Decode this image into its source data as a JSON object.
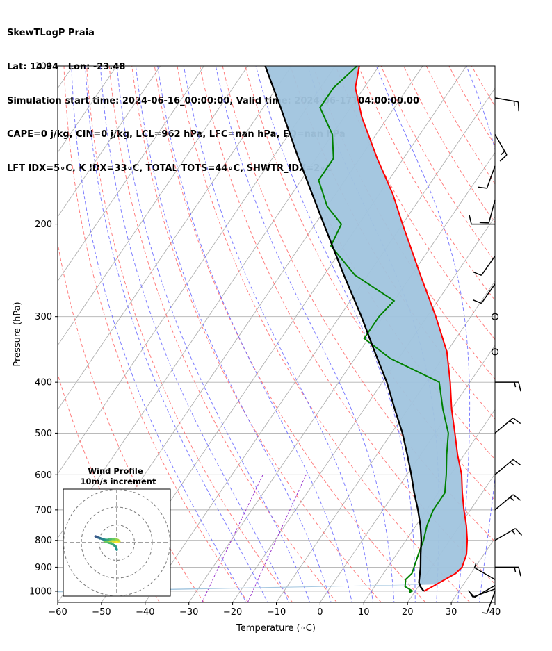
{
  "header": {
    "line1": "SkewTLogP Praia",
    "line2": "Lat: 14.94   Lon: -23.48",
    "line3": "Simulation start time: 2024-06-16_00:00:00, Valid time: 2024-06-17T04:00:00.00",
    "line4": "CAPE=0 j/kg, CIN=0 j/kg, LCL=962 hPa, LFC=nan hPa, EQ=nan hPa",
    "line5": "LFT IDX=5∘C, K IDX=33∘C, TOTAL TOTS=44∘C, SHWTR_IDX=2∘C"
  },
  "chart_data": {
    "type": "skewt",
    "xlabel": "Temperature (∘C)",
    "ylabel": "Pressure (hPa)",
    "xlim": [
      -60,
      40
    ],
    "ylim": [
      1050,
      100
    ],
    "x_ticks": [
      -60,
      -50,
      -40,
      -30,
      -20,
      -10,
      0,
      10,
      20,
      30,
      40
    ],
    "x_tick_labels": [
      "−60",
      "−50",
      "−40",
      "−30",
      "−20",
      "−10",
      "0",
      "10",
      "20",
      "30",
      "40"
    ],
    "y_ticks": [
      100,
      200,
      300,
      400,
      500,
      600,
      700,
      800,
      900,
      1000
    ],
    "y_tick_labels": [
      "100",
      "200",
      "300",
      "400",
      "500",
      "600",
      "700",
      "800",
      "900",
      "1000"
    ],
    "grid": true,
    "colors": {
      "temperature": "#ff0000",
      "dewpoint": "#008000",
      "parcel": "#000000",
      "cape_fill": "#a0c4de",
      "dry_adiabat": "#ff6666",
      "moist_adiabat": "#6666ff",
      "mixing_ratio": "#9933cc",
      "isotherm": "#b0b0b0"
    },
    "temperature_profile": [
      {
        "p": 1000,
        "t": 22.0
      },
      {
        "p": 975,
        "t": 23.5
      },
      {
        "p": 950,
        "t": 25.0
      },
      {
        "p": 925,
        "t": 26.5
      },
      {
        "p": 900,
        "t": 27.0
      },
      {
        "p": 850,
        "t": 26.0
      },
      {
        "p": 800,
        "t": 24.0
      },
      {
        "p": 750,
        "t": 21.5
      },
      {
        "p": 700,
        "t": 18.5
      },
      {
        "p": 650,
        "t": 15.5
      },
      {
        "p": 600,
        "t": 12.5
      },
      {
        "p": 550,
        "t": 8.5
      },
      {
        "p": 500,
        "t": 4.5
      },
      {
        "p": 450,
        "t": 0.0
      },
      {
        "p": 400,
        "t": -4.5
      },
      {
        "p": 350,
        "t": -10.0
      },
      {
        "p": 300,
        "t": -18.0
      },
      {
        "p": 250,
        "t": -28.0
      },
      {
        "p": 200,
        "t": -40.0
      },
      {
        "p": 175,
        "t": -47.0
      },
      {
        "p": 150,
        "t": -56.0
      },
      {
        "p": 125,
        "t": -66.0
      },
      {
        "p": 110,
        "t": -72.0
      },
      {
        "p": 100,
        "t": -74.5
      }
    ],
    "dewpoint_profile": [
      {
        "p": 1000,
        "t": 19.5
      },
      {
        "p": 980,
        "t": 17.0
      },
      {
        "p": 950,
        "t": 16.0
      },
      {
        "p": 925,
        "t": 16.5
      },
      {
        "p": 900,
        "t": 16.0
      },
      {
        "p": 850,
        "t": 15.0
      },
      {
        "p": 800,
        "t": 14.0
      },
      {
        "p": 750,
        "t": 12.5
      },
      {
        "p": 700,
        "t": 11.5
      },
      {
        "p": 650,
        "t": 11.5
      },
      {
        "p": 600,
        "t": 9.0
      },
      {
        "p": 550,
        "t": 6.0
      },
      {
        "p": 500,
        "t": 3.0
      },
      {
        "p": 450,
        "t": -2.0
      },
      {
        "p": 400,
        "t": -7.0
      },
      {
        "p": 360,
        "t": -22.0
      },
      {
        "p": 330,
        "t": -31.0
      },
      {
        "p": 300,
        "t": -31.0
      },
      {
        "p": 280,
        "t": -30.0
      },
      {
        "p": 250,
        "t": -43.0
      },
      {
        "p": 220,
        "t": -53.0
      },
      {
        "p": 200,
        "t": -54.0
      },
      {
        "p": 185,
        "t": -60.0
      },
      {
        "p": 165,
        "t": -66.0
      },
      {
        "p": 150,
        "t": -66.0
      },
      {
        "p": 135,
        "t": -70.0
      },
      {
        "p": 120,
        "t": -77.0
      },
      {
        "p": 110,
        "t": -77.0
      },
      {
        "p": 100,
        "t": -75.0
      }
    ],
    "parcel_profile": [
      {
        "p": 1000,
        "t": 22.0
      },
      {
        "p": 980,
        "t": 20.5
      },
      {
        "p": 962,
        "t": 19.5
      },
      {
        "p": 900,
        "t": 17.5
      },
      {
        "p": 850,
        "t": 15.5
      },
      {
        "p": 800,
        "t": 13.5
      },
      {
        "p": 750,
        "t": 11.0
      },
      {
        "p": 700,
        "t": 8.0
      },
      {
        "p": 650,
        "t": 4.5
      },
      {
        "p": 600,
        "t": 1.0
      },
      {
        "p": 550,
        "t": -3.0
      },
      {
        "p": 500,
        "t": -7.5
      },
      {
        "p": 450,
        "t": -13.0
      },
      {
        "p": 400,
        "t": -19.0
      },
      {
        "p": 350,
        "t": -26.5
      },
      {
        "p": 300,
        "t": -35.0
      },
      {
        "p": 250,
        "t": -45.5
      },
      {
        "p": 200,
        "t": -58.0
      },
      {
        "p": 150,
        "t": -74.0
      },
      {
        "p": 120,
        "t": -86.0
      },
      {
        "p": 100,
        "t": -96.0
      }
    ],
    "wind_barbs": [
      {
        "p": 1000,
        "speed": 5,
        "dir": 200
      },
      {
        "p": 990,
        "speed": 5,
        "dir": 250
      },
      {
        "p": 975,
        "speed": 10,
        "dir": 240
      },
      {
        "p": 950,
        "speed": 5,
        "dir": 300
      },
      {
        "p": 900,
        "speed": 15,
        "dir": 90
      },
      {
        "p": 800,
        "speed": 15,
        "dir": 60
      },
      {
        "p": 700,
        "speed": 15,
        "dir": 50
      },
      {
        "p": 600,
        "speed": 15,
        "dir": 50
      },
      {
        "p": 500,
        "speed": 15,
        "dir": 50
      },
      {
        "p": 400,
        "speed": 15,
        "dir": 90
      },
      {
        "p": 350,
        "speed": 0,
        "dir": 0
      },
      {
        "p": 300,
        "speed": 0,
        "dir": 0
      },
      {
        "p": 260,
        "speed": 10,
        "dir": 215
      },
      {
        "p": 230,
        "speed": 10,
        "dir": 215
      },
      {
        "p": 200,
        "speed": 10,
        "dir": 270
      },
      {
        "p": 180,
        "speed": 10,
        "dir": 195
      },
      {
        "p": 155,
        "speed": 10,
        "dir": 200
      },
      {
        "p": 135,
        "speed": 15,
        "dir": 150
      },
      {
        "p": 115,
        "speed": 15,
        "dir": 100
      }
    ],
    "hodograph": {
      "title": "Wind Profile",
      "subtitle": "10m/s increment",
      "rings": [
        10,
        20,
        30
      ],
      "points": [
        {
          "u": 0.0,
          "v": -4.0
        },
        {
          "u": -0.5,
          "v": -2.5
        },
        {
          "u": -1.5,
          "v": -1.5
        },
        {
          "u": -3.0,
          "v": -0.5
        },
        {
          "u": -4.5,
          "v": 0.0
        },
        {
          "u": -6.0,
          "v": 0.5
        },
        {
          "u": -7.0,
          "v": 1.0
        },
        {
          "u": -6.0,
          "v": 1.5
        },
        {
          "u": -4.0,
          "v": 1.0
        },
        {
          "u": -2.0,
          "v": 0.8
        },
        {
          "u": 0.0,
          "v": 0.5
        },
        {
          "u": 1.5,
          "v": 0.8
        },
        {
          "u": 0.5,
          "v": 1.5
        },
        {
          "u": -1.5,
          "v": 2.0
        },
        {
          "u": -3.5,
          "v": 2.0
        },
        {
          "u": -5.0,
          "v": 1.5
        },
        {
          "u": -6.5,
          "v": 1.5
        },
        {
          "u": -8.0,
          "v": 2.0
        },
        {
          "u": -9.5,
          "v": 2.5
        },
        {
          "u": -11.0,
          "v": 3.0
        },
        {
          "u": -12.0,
          "v": 3.5
        }
      ]
    }
  }
}
